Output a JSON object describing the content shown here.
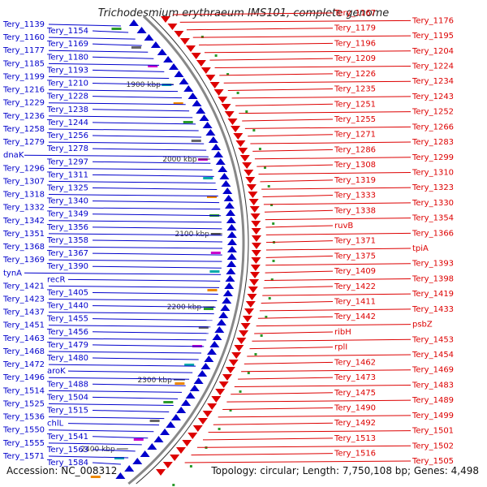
{
  "title": "Trichodesmium erythraeum IMS101, complete genome",
  "footer": {
    "accession": "Accession: NC_008312",
    "summary": "Topology: circular; Length: 7,750,108 bp; Genes: 4,498"
  },
  "colors": {
    "forward": "#0000cc",
    "reverse": "#dd0000",
    "backbone": "#888888"
  },
  "kbp_marks": [
    "1900 kbp",
    "2000 kbp",
    "2100 kbp",
    "2200 kbp",
    "2300 kbp",
    "2400 kbp"
  ],
  "left_labels": [
    "Tery_1139",
    "Tery_1154",
    "Tery_1160",
    "Tery_1169",
    "Tery_1177",
    "Tery_1180",
    "Tery_1185",
    "Tery_1193",
    "Tery_1199",
    "Tery_1210",
    "Tery_1216",
    "Tery_1228",
    "Tery_1229",
    "Tery_1238",
    "Tery_1236",
    "Tery_1244",
    "Tery_1258",
    "Tery_1256",
    "Tery_1279",
    "Tery_1278",
    "dnaK",
    "Tery_1297",
    "Tery_1296",
    "Tery_1311",
    "Tery_1307",
    "Tery_1325",
    "Tery_1318",
    "Tery_1340",
    "Tery_1332",
    "Tery_1349",
    "Tery_1342",
    "Tery_1356",
    "Tery_1351",
    "Tery_1358",
    "Tery_1368",
    "Tery_1367",
    "Tery_1369",
    "Tery_1390",
    "tynA",
    "recR",
    "Tery_1421",
    "Tery_1405",
    "Tery_1423",
    "Tery_1440",
    "Tery_1437",
    "Tery_1455",
    "Tery_1451",
    "Tery_1456",
    "Tery_1463",
    "Tery_1479",
    "Tery_1468",
    "Tery_1480",
    "Tery_1472",
    "aroK",
    "Tery_1496",
    "Tery_1488",
    "Tery_1514",
    "Tery_1504",
    "Tery_1525",
    "Tery_1515",
    "Tery_1536",
    "chlL",
    "Tery_1550",
    "Tery_1541",
    "Tery_1555",
    "Tery_1563",
    "Tery_1571",
    "Tery_1584"
  ],
  "right_labels": [
    "Tery_1167",
    "Tery_1176",
    "Tery_1179",
    "Tery_1195",
    "Tery_1196",
    "Tery_1204",
    "Tery_1209",
    "Tery_1224",
    "Tery_1226",
    "Tery_1234",
    "Tery_1235",
    "Tery_1243",
    "Tery_1251",
    "Tery_1252",
    "Tery_1255",
    "Tery_1266",
    "Tery_1271",
    "Tery_1283",
    "Tery_1286",
    "Tery_1299",
    "Tery_1308",
    "Tery_1310",
    "Tery_1319",
    "Tery_1323",
    "Tery_1333",
    "Tery_1330",
    "Tery_1338",
    "Tery_1354",
    "ruvB",
    "Tery_1366",
    "Tery_1371",
    "tpiA",
    "Tery_1375",
    "Tery_1393",
    "Tery_1409",
    "Tery_1398",
    "Tery_1422",
    "Tery_1419",
    "Tery_1411",
    "Tery_1433",
    "Tery_1442",
    "psbZ",
    "ribH",
    "Tery_1453",
    "rplI",
    "Tery_1454",
    "Tery_1462",
    "Tery_1469",
    "Tery_1473",
    "Tery_1483",
    "Tery_1475",
    "Tery_1489",
    "Tery_1490",
    "Tery_1499",
    "Tery_1492",
    "Tery_1501",
    "Tery_1513",
    "Tery_1502",
    "Tery_1516",
    "Tery_1505"
  ]
}
